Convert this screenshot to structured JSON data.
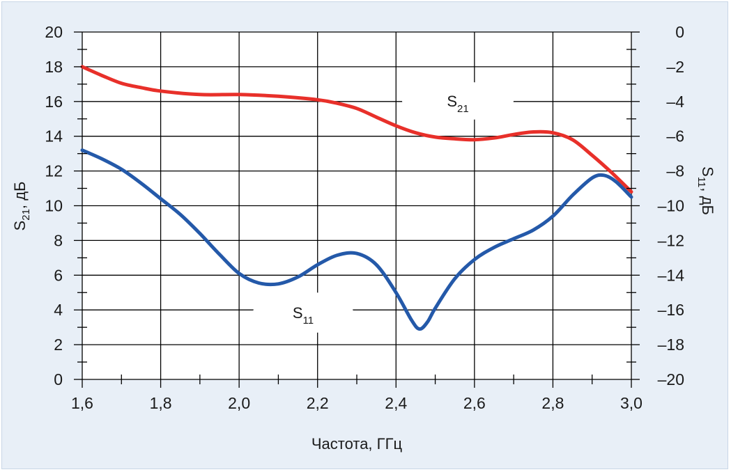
{
  "chart_data": {
    "type": "line",
    "x_label": "Частота, ГГц",
    "y_left_label": {
      "main": "S",
      "sub": "21",
      "rest": ", дБ"
    },
    "y_right_label": {
      "main": "S",
      "sub": "11",
      "rest": ", дБ"
    },
    "x_range": [
      1.6,
      3.0
    ],
    "x_ticks": [
      "1,6",
      "1,8",
      "2,0",
      "2,2",
      "2,4",
      "2,6",
      "2,8",
      "3,0"
    ],
    "y_left_range": [
      0,
      20
    ],
    "y_left_ticks": [
      "0",
      "2",
      "4",
      "6",
      "8",
      "10",
      "12",
      "14",
      "16",
      "18",
      "20"
    ],
    "y_right_range": [
      -20,
      0
    ],
    "y_right_ticks": [
      "–20",
      "–18",
      "–16",
      "–14",
      "–12",
      "–10",
      "–8",
      "–6",
      "–4",
      "–2",
      "0"
    ],
    "grid": true,
    "series": [
      {
        "name": {
          "main": "S",
          "sub": "21"
        },
        "axis": "left",
        "color": "#e8302a",
        "points": [
          [
            1.6,
            18.0
          ],
          [
            1.65,
            17.5
          ],
          [
            1.7,
            17.05
          ],
          [
            1.75,
            16.8
          ],
          [
            1.8,
            16.6
          ],
          [
            1.9,
            16.4
          ],
          [
            2.0,
            16.4
          ],
          [
            2.1,
            16.3
          ],
          [
            2.2,
            16.1
          ],
          [
            2.25,
            15.9
          ],
          [
            2.3,
            15.6
          ],
          [
            2.35,
            15.1
          ],
          [
            2.4,
            14.6
          ],
          [
            2.45,
            14.2
          ],
          [
            2.5,
            13.95
          ],
          [
            2.55,
            13.85
          ],
          [
            2.6,
            13.8
          ],
          [
            2.65,
            13.9
          ],
          [
            2.7,
            14.1
          ],
          [
            2.75,
            14.25
          ],
          [
            2.8,
            14.2
          ],
          [
            2.85,
            13.8
          ],
          [
            2.9,
            12.9
          ],
          [
            2.95,
            11.9
          ],
          [
            3.0,
            10.8
          ]
        ]
      },
      {
        "name": {
          "main": "S",
          "sub": "11"
        },
        "axis": "right",
        "color": "#2459a9",
        "points": [
          [
            1.6,
            -6.8
          ],
          [
            1.65,
            -7.3
          ],
          [
            1.7,
            -7.9
          ],
          [
            1.75,
            -8.7
          ],
          [
            1.8,
            -9.6
          ],
          [
            1.85,
            -10.5
          ],
          [
            1.9,
            -11.6
          ],
          [
            1.95,
            -12.8
          ],
          [
            2.0,
            -13.9
          ],
          [
            2.05,
            -14.45
          ],
          [
            2.1,
            -14.5
          ],
          [
            2.15,
            -14.1
          ],
          [
            2.2,
            -13.4
          ],
          [
            2.25,
            -12.85
          ],
          [
            2.3,
            -12.75
          ],
          [
            2.35,
            -13.4
          ],
          [
            2.4,
            -15.0
          ],
          [
            2.44,
            -16.6
          ],
          [
            2.46,
            -17.1
          ],
          [
            2.48,
            -16.7
          ],
          [
            2.5,
            -15.9
          ],
          [
            2.55,
            -14.2
          ],
          [
            2.6,
            -13.1
          ],
          [
            2.65,
            -12.4
          ],
          [
            2.7,
            -11.9
          ],
          [
            2.75,
            -11.4
          ],
          [
            2.8,
            -10.6
          ],
          [
            2.85,
            -9.4
          ],
          [
            2.9,
            -8.4
          ],
          [
            2.93,
            -8.25
          ],
          [
            2.96,
            -8.6
          ],
          [
            3.0,
            -9.5
          ]
        ]
      }
    ]
  }
}
